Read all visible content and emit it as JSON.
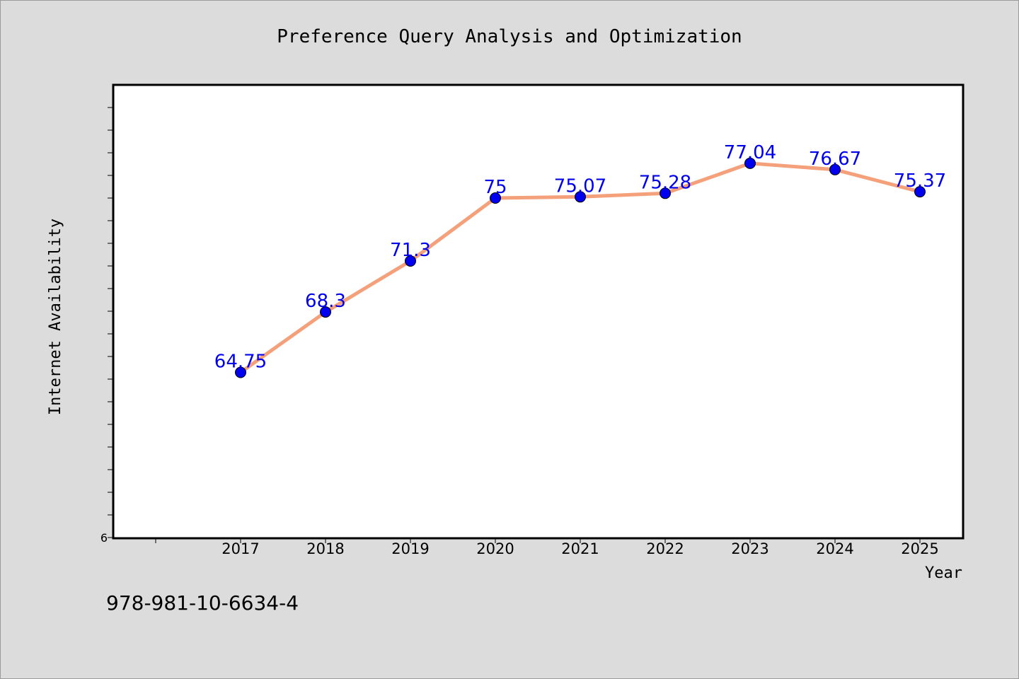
{
  "chart_data": {
    "type": "line",
    "title": "Preference Query Analysis and Optimization",
    "xlabel": "Year",
    "ylabel": "Internet Availability",
    "x": [
      "2017",
      "2018",
      "2019",
      "2020",
      "2021",
      "2022",
      "2023",
      "2024",
      "2025"
    ],
    "series": [
      {
        "values": [
          64.75,
          68.3,
          71.3,
          75,
          75.07,
          75.28,
          77.04,
          76.67,
          75.37
        ],
        "labels": [
          "64.75",
          "68.3",
          "71.3",
          "75",
          "75.07",
          "75.28",
          "77.04",
          "76.67",
          "75.37"
        ],
        "line_color": "#f4a07a",
        "marker_color": "#0000ee",
        "label_color": "#0000ee"
      }
    ],
    "y_tick_label_visible": "6",
    "ylim": [
      55,
      75
    ],
    "grid": false,
    "legend": "none"
  },
  "footer_code": "978-981-10-6634-4",
  "colors": {
    "background": "#dcdcdc",
    "plot_background": "#ffffff",
    "axis": "#000000"
  }
}
